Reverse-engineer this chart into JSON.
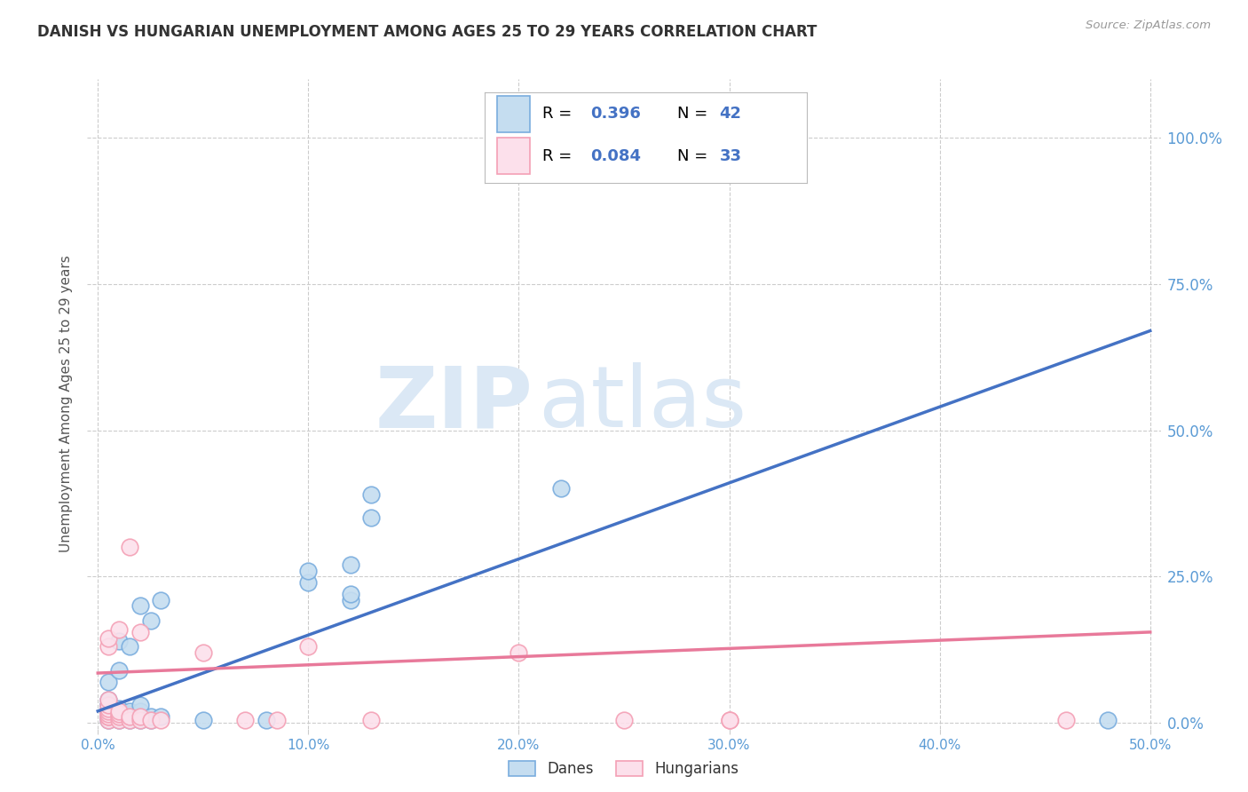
{
  "title": "DANISH VS HUNGARIAN UNEMPLOYMENT AMONG AGES 25 TO 29 YEARS CORRELATION CHART",
  "source": "Source: ZipAtlas.com",
  "ylabel": "Unemployment Among Ages 25 to 29 years",
  "legend_dane_r": "R = 0.396",
  "legend_dane_n": "N = 42",
  "legend_hung_r": "R = 0.084",
  "legend_hung_n": "N = 33",
  "legend_dane_label": "Danes",
  "legend_hung_label": "Hungarians",
  "blue_edge": "#7aadde",
  "blue_fill": "#c5ddf0",
  "pink_edge": "#f4a0b5",
  "pink_fill": "#fce0eb",
  "trend_blue": "#4472c4",
  "trend_pink": "#e8799a",
  "watermark_zip": "ZIP",
  "watermark_atlas": "atlas",
  "watermark_color": "#dbe8f5",
  "r_color": "#000000",
  "n_color": "#4472c4",
  "axis_color": "#5b9bd5",
  "grid_color": "#cccccc",
  "blue_dots_x": [
    0.005,
    0.005,
    0.005,
    0.005,
    0.005,
    0.005,
    0.005,
    0.005,
    0.005,
    0.01,
    0.01,
    0.01,
    0.01,
    0.01,
    0.01,
    0.01,
    0.015,
    0.015,
    0.015,
    0.015,
    0.015,
    0.02,
    0.02,
    0.02,
    0.02,
    0.02,
    0.025,
    0.025,
    0.025,
    0.03,
    0.03,
    0.05,
    0.08,
    0.1,
    0.1,
    0.12,
    0.12,
    0.12,
    0.13,
    0.13,
    0.22,
    0.48
  ],
  "blue_dots_y": [
    0.005,
    0.01,
    0.01,
    0.02,
    0.02,
    0.03,
    0.03,
    0.04,
    0.07,
    0.005,
    0.01,
    0.015,
    0.02,
    0.025,
    0.09,
    0.14,
    0.005,
    0.01,
    0.015,
    0.02,
    0.13,
    0.005,
    0.01,
    0.02,
    0.03,
    0.2,
    0.005,
    0.01,
    0.175,
    0.01,
    0.21,
    0.005,
    0.005,
    0.24,
    0.26,
    0.21,
    0.22,
    0.27,
    0.35,
    0.39,
    0.4,
    0.005
  ],
  "pink_dots_x": [
    0.005,
    0.005,
    0.005,
    0.005,
    0.005,
    0.005,
    0.005,
    0.005,
    0.005,
    0.005,
    0.01,
    0.01,
    0.01,
    0.01,
    0.01,
    0.015,
    0.015,
    0.015,
    0.02,
    0.02,
    0.02,
    0.025,
    0.03,
    0.05,
    0.07,
    0.085,
    0.1,
    0.13,
    0.2,
    0.25,
    0.3,
    0.3,
    0.46
  ],
  "pink_dots_y": [
    0.005,
    0.01,
    0.01,
    0.015,
    0.02,
    0.025,
    0.03,
    0.04,
    0.13,
    0.145,
    0.005,
    0.01,
    0.015,
    0.02,
    0.16,
    0.005,
    0.01,
    0.3,
    0.005,
    0.01,
    0.155,
    0.005,
    0.005,
    0.12,
    0.005,
    0.005,
    0.13,
    0.005,
    0.12,
    0.005,
    0.005,
    0.005,
    0.005
  ],
  "blue_trend_x0": 0.0,
  "blue_trend_y0": 0.02,
  "blue_trend_x1": 0.5,
  "blue_trend_y1": 0.67,
  "pink_trend_x0": 0.0,
  "pink_trend_y0": 0.085,
  "pink_trend_x1": 0.5,
  "pink_trend_y1": 0.155,
  "xlim": [
    -0.005,
    0.505
  ],
  "ylim": [
    -0.01,
    1.1
  ],
  "yticks": [
    0.0,
    0.25,
    0.5,
    0.75,
    1.0
  ],
  "xticks": [
    0.0,
    0.1,
    0.2,
    0.3,
    0.4,
    0.5
  ],
  "background": "#ffffff",
  "title_color": "#333333",
  "label_color": "#555555"
}
